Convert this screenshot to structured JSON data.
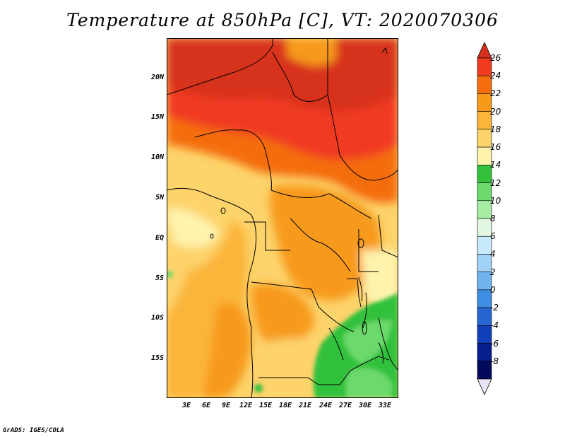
{
  "title": "Temperature at 850hPa [C], VT: 2020070306",
  "credit": "GrADS: IGES/COLA",
  "latitude_labels": [
    "20N",
    "15N",
    "10N",
    "5N",
    "EQ",
    "5S",
    "10S",
    "15S"
  ],
  "longitude_labels": [
    "3E",
    "6E",
    "9E",
    "12E",
    "15E",
    "18E",
    "21E",
    "24E",
    "27E",
    "30E",
    "33E"
  ],
  "colorbar": {
    "labels": [
      "26",
      "24",
      "22",
      "20",
      "18",
      "16",
      "14",
      "12",
      "10",
      "8",
      "6",
      "4",
      "2",
      "0",
      "-2",
      "-4",
      "-6",
      "-8"
    ],
    "colors": [
      "#d7301f",
      "#f03b20",
      "#f46d0e",
      "#f79a1a",
      "#fbb53a",
      "#fdd36b",
      "#fef3ad",
      "#33c13c",
      "#6cd96c",
      "#a7eca3",
      "#e2f7e0",
      "#c8e8fb",
      "#9fd2f6",
      "#6fb4ef",
      "#3d8de3",
      "#2566d3",
      "#103fb8",
      "#061e8c",
      "#02095a"
    ],
    "below_color": "#e8e6f6"
  },
  "map_colors": {
    "c26": "#d7301f",
    "c24": "#f03b20",
    "c22": "#f46d0e",
    "c20": "#f79a1a",
    "c18": "#fbb53a",
    "c16": "#fdd36b",
    "c14": "#fef3ad",
    "g12": "#33c13c",
    "g10": "#6cd96c",
    "g8": "#a7eca3"
  }
}
